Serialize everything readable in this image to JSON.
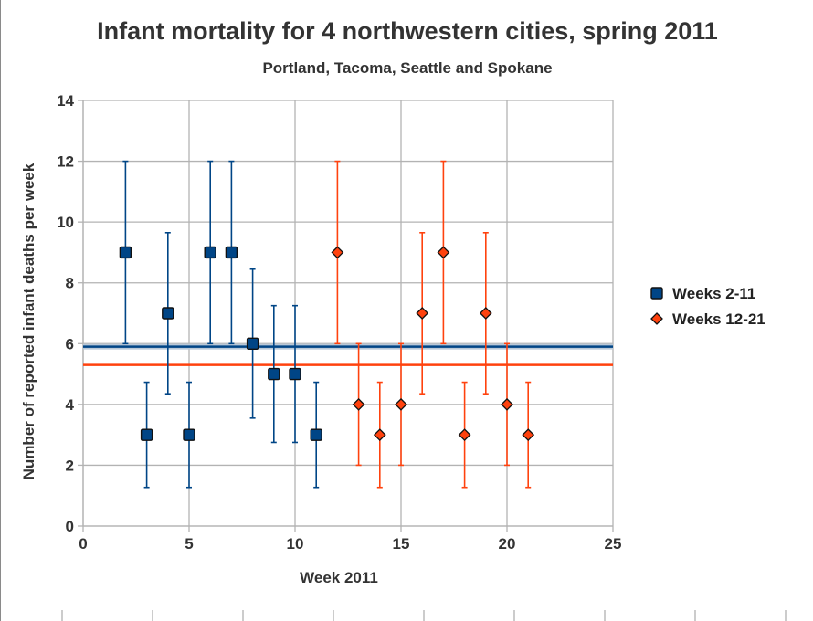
{
  "chart_data": {
    "type": "scatter",
    "title": "Infant mortality for 4 northwestern cities, spring 2011",
    "subtitle": "Portland, Tacoma, Seattle and Spokane",
    "xlabel": "Week 2011",
    "ylabel": "Number of reported infant deaths per week",
    "xlim": [
      0,
      25
    ],
    "ylim": [
      0,
      14
    ],
    "x_ticks": [
      0,
      5,
      10,
      15,
      20,
      25
    ],
    "y_ticks": [
      0,
      2,
      4,
      6,
      8,
      10,
      12,
      14
    ],
    "grid": true,
    "legend_position": "right",
    "series": [
      {
        "name": "Weeks 2-11",
        "color": "#004586",
        "marker": "square",
        "x": [
          2,
          3,
          4,
          5,
          6,
          7,
          8,
          9,
          10,
          11
        ],
        "y": [
          9,
          3,
          7,
          3,
          9,
          9,
          6,
          5,
          5,
          3
        ],
        "error_low": [
          6,
          1.27,
          4.35,
          1.27,
          6,
          6,
          3.55,
          2.75,
          2.75,
          1.27
        ],
        "error_high": [
          12,
          4.73,
          9.65,
          4.73,
          12,
          12,
          8.45,
          7.25,
          7.25,
          4.73
        ],
        "mean": 5.9
      },
      {
        "name": "Weeks 12-21",
        "color": "#ff420e",
        "marker": "diamond",
        "x": [
          12,
          13,
          14,
          15,
          16,
          17,
          18,
          19,
          20,
          21
        ],
        "y": [
          9,
          4,
          3,
          4,
          7,
          9,
          3,
          7,
          4,
          3
        ],
        "error_low": [
          6,
          2,
          1.27,
          2,
          4.35,
          6,
          1.27,
          4.35,
          2,
          1.27
        ],
        "error_high": [
          12,
          6,
          4.73,
          6,
          9.65,
          12,
          4.73,
          9.65,
          6,
          4.73
        ],
        "mean": 5.3
      }
    ]
  }
}
